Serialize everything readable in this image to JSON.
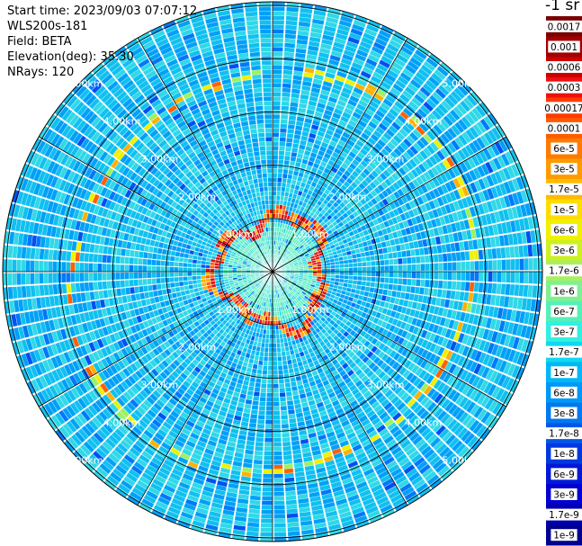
{
  "header": {
    "start_time": "Start time: 2023/09/03 07:07:12",
    "instrument": "WLS200s-181",
    "field": "Field: BETA",
    "elevation": "Elevation(deg): 35.30",
    "nrays": "NRays: 120"
  },
  "colorbar": {
    "unit": "-1 sr",
    "labels": [
      "0.0017",
      "0.001",
      "0.0006",
      "0.0003",
      "0.00017",
      "0.0001",
      "6e-5",
      "3e-5",
      "1.7e-5",
      "1e-5",
      "6e-6",
      "3e-6",
      "1.7e-6",
      "1e-6",
      "6e-7",
      "3e-7",
      "1.7e-7",
      "1e-7",
      "6e-8",
      "3e-8",
      "1.7e-8",
      "1e-8",
      "6e-9",
      "3e-9",
      "1.7e-9",
      "1e-9"
    ],
    "colors": [
      "#7a0000",
      "#a00000",
      "#cc0000",
      "#ee1010",
      "#ff3a00",
      "#ff5a00",
      "#ff7a00",
      "#ff9a00",
      "#ffbb00",
      "#ffdd00",
      "#f0f000",
      "#ccf020",
      "#a8f060",
      "#80f090",
      "#55f0b8",
      "#30f0e0",
      "#10d8f0",
      "#00b8f8",
      "#0098f8",
      "#0078f0",
      "#0058e8",
      "#0038e0",
      "#0018d8",
      "#0000d0",
      "#0000b0",
      "#000090"
    ]
  },
  "range_rings": {
    "labels": [
      "1.00km",
      "2.00km",
      "3.00km",
      "4.00km",
      "5.00km"
    ]
  }
}
